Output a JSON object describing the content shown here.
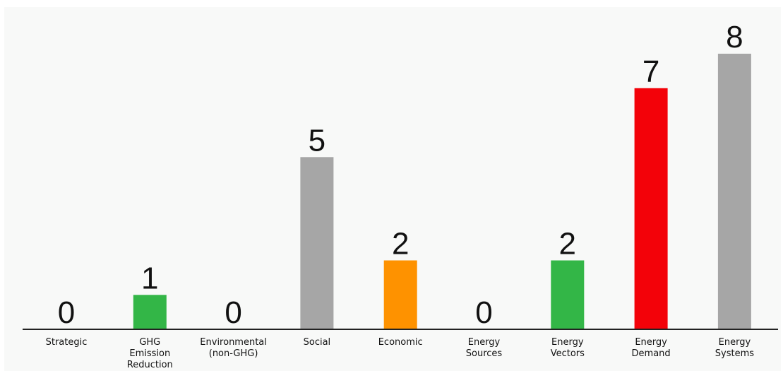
{
  "chart_data": {
    "type": "bar",
    "categories": [
      "Strategic",
      "GHG Emission Reduction",
      "Environmental (non-GHG)",
      "Social",
      "Economic",
      "Energy Sources",
      "Energy Vectors",
      "Energy Demand",
      "Energy Systems"
    ],
    "category_lines": [
      [
        "Strategic"
      ],
      [
        "GHG",
        "Emission",
        "Reduction"
      ],
      [
        "Environmental",
        "(non-GHG)"
      ],
      [
        "Social"
      ],
      [
        "Economic"
      ],
      [
        "Energy",
        "Sources"
      ],
      [
        "Energy",
        "Vectors"
      ],
      [
        "Energy",
        "Demand"
      ],
      [
        "Energy",
        "Systems"
      ]
    ],
    "values": [
      0,
      1,
      0,
      5,
      2,
      0,
      2,
      7,
      8
    ],
    "bar_colors": [
      "#a6a6a6",
      "#33b647",
      "#a6a6a6",
      "#a6a6a6",
      "#fe9200",
      "#a6a6a6",
      "#33b647",
      "#f30209",
      "#a6a6a6"
    ],
    "ylim": [
      0,
      8
    ],
    "grid": false,
    "legend": "none",
    "title": "",
    "xlabel": "",
    "ylabel": ""
  },
  "colors": {
    "background": "#f8f9f8",
    "axis": "#222222",
    "text": "#111111"
  }
}
